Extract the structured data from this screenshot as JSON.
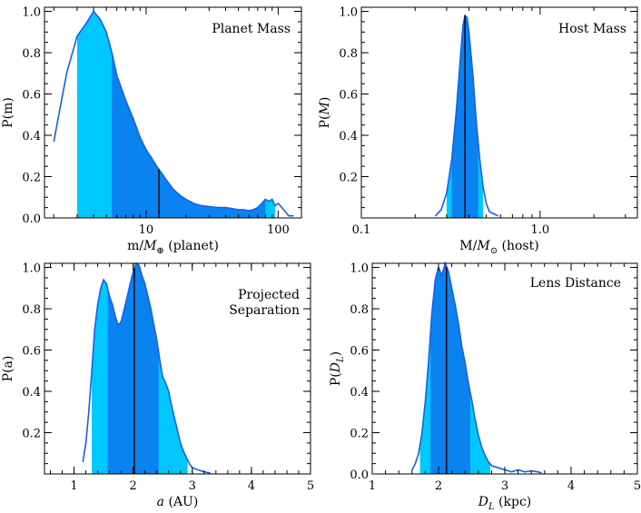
{
  "colors": {
    "light": "#00c8ff",
    "dark": "#0a82f0",
    "line": "#1a5fe6",
    "median": "#000000",
    "axis": "#000000"
  },
  "chart_data": [
    {
      "type": "area",
      "title": "Planet Mass",
      "xscale": "log",
      "xlim": [
        1.7,
        150
      ],
      "ylim": [
        0,
        1.02
      ],
      "xticks": [
        10,
        100
      ],
      "xtick_labels": [
        "10",
        "100"
      ],
      "yticks": [
        0,
        0.2,
        0.4,
        0.6,
        0.8,
        1.0
      ],
      "ytick_labels": [
        "0.0",
        "0.2",
        "0.4",
        "0.6",
        "0.8",
        "1.0"
      ],
      "xlabel_parts": [
        "m/",
        "M",
        "⊕",
        " (planet)"
      ],
      "ylabel": "P(m)",
      "x": [
        2.0,
        2.5,
        3.0,
        3.5,
        4.0,
        4.5,
        5.0,
        5.5,
        6.0,
        7.0,
        8.0,
        9.0,
        10,
        11,
        12,
        13,
        14,
        16,
        18,
        20,
        23,
        26,
        30,
        35,
        40,
        45,
        50,
        55,
        60,
        65,
        70,
        75,
        80,
        85,
        90,
        95,
        100,
        110,
        120,
        130
      ],
      "y": [
        0.37,
        0.7,
        0.88,
        0.94,
        1.0,
        0.96,
        0.9,
        0.8,
        0.69,
        0.57,
        0.48,
        0.39,
        0.33,
        0.29,
        0.25,
        0.22,
        0.19,
        0.14,
        0.11,
        0.09,
        0.07,
        0.06,
        0.055,
        0.05,
        0.05,
        0.045,
        0.04,
        0.04,
        0.035,
        0.04,
        0.05,
        0.07,
        0.09,
        0.08,
        0.09,
        0.06,
        0.07,
        0.04,
        0.01,
        0.01
      ],
      "bands": {
        "light": [
          3.0,
          95
        ],
        "dark": [
          5.5,
          80
        ]
      },
      "median": 12.5
    },
    {
      "type": "area",
      "title": "Host Mass",
      "xscale": "log",
      "xlim": [
        0.1,
        3.5
      ],
      "ylim": [
        0,
        1.02
      ],
      "xticks": [
        0.1,
        1.0
      ],
      "xtick_labels": [
        "0.1",
        "1.0"
      ],
      "yticks": [
        0.2,
        0.4,
        0.6,
        0.8,
        1.0
      ],
      "ytick_labels": [
        "0.2",
        "0.4",
        "0.6",
        "0.8",
        "1.0"
      ],
      "xlabel_parts": [
        "M/",
        "M",
        "⊙",
        " (host)"
      ],
      "ylabel": "P(M)",
      "x": [
        0.26,
        0.28,
        0.3,
        0.32,
        0.34,
        0.36,
        0.37,
        0.38,
        0.39,
        0.4,
        0.42,
        0.44,
        0.46,
        0.48,
        0.5,
        0.52,
        0.55,
        0.58
      ],
      "y": [
        0.01,
        0.04,
        0.12,
        0.28,
        0.52,
        0.8,
        0.93,
        0.98,
        0.97,
        0.9,
        0.7,
        0.46,
        0.28,
        0.15,
        0.07,
        0.03,
        0.02,
        0.01
      ],
      "bands": {
        "light": [
          0.3,
          0.48
        ],
        "dark": [
          0.32,
          0.45
        ]
      },
      "median": 0.38
    },
    {
      "type": "area",
      "title": "Projected Separation",
      "xscale": "linear",
      "xlim": [
        0.5,
        5.0
      ],
      "ylim": [
        0,
        1.02
      ],
      "xticks": [
        1,
        2,
        3,
        4,
        5
      ],
      "xtick_labels": [
        "1",
        "2",
        "3",
        "4",
        "5"
      ],
      "yticks": [
        0.2,
        0.4,
        0.6,
        0.8,
        1.0
      ],
      "ytick_labels": [
        "0.2",
        "0.4",
        "0.6",
        "0.8",
        "1.0"
      ],
      "xlabel_parts": [
        "a",
        " (AU)"
      ],
      "ylabel": "P(a)",
      "x": [
        1.15,
        1.2,
        1.25,
        1.3,
        1.35,
        1.4,
        1.45,
        1.5,
        1.55,
        1.6,
        1.65,
        1.7,
        1.75,
        1.8,
        1.85,
        1.9,
        1.95,
        2.0,
        2.05,
        2.1,
        2.15,
        2.2,
        2.25,
        2.3,
        2.35,
        2.4,
        2.45,
        2.5,
        2.55,
        2.6,
        2.65,
        2.7,
        2.75,
        2.8,
        2.85,
        2.9,
        2.95,
        3.0,
        3.1,
        3.2,
        3.3
      ],
      "y": [
        0.06,
        0.15,
        0.3,
        0.5,
        0.7,
        0.82,
        0.9,
        0.94,
        0.92,
        0.86,
        0.82,
        0.76,
        0.72,
        0.74,
        0.8,
        0.86,
        0.92,
        0.98,
        1.02,
        1.01,
        0.96,
        0.92,
        0.86,
        0.8,
        0.72,
        0.65,
        0.55,
        0.47,
        0.44,
        0.4,
        0.33,
        0.27,
        0.21,
        0.15,
        0.11,
        0.08,
        0.05,
        0.03,
        0.02,
        0.01,
        0.005
      ],
      "bands": {
        "light": [
          1.3,
          2.92
        ],
        "dark": [
          1.57,
          2.43
        ]
      },
      "median": 2.02
    },
    {
      "type": "area",
      "title": "Lens Distance",
      "xscale": "linear",
      "xlim": [
        1.0,
        5.0
      ],
      "ylim": [
        0,
        1.02
      ],
      "xticks": [
        1,
        2,
        3,
        4,
        5
      ],
      "xtick_labels": [
        "1",
        "2",
        "3",
        "4",
        "5"
      ],
      "yticks": [
        0,
        0.2,
        0.4,
        0.6,
        0.8,
        1.0
      ],
      "ytick_labels": [
        "0.0",
        "0.2",
        "0.4",
        "0.6",
        "0.8",
        "1.0"
      ],
      "xlabel_parts": [
        "D",
        "L",
        " (kpc)"
      ],
      "ylabel": "P(D_L)",
      "x": [
        1.6,
        1.65,
        1.7,
        1.75,
        1.8,
        1.85,
        1.9,
        1.95,
        2.0,
        2.05,
        2.1,
        2.15,
        2.2,
        2.25,
        2.3,
        2.35,
        2.4,
        2.45,
        2.5,
        2.55,
        2.6,
        2.65,
        2.7,
        2.75,
        2.8,
        2.9,
        3.0,
        3.1,
        3.2,
        3.3,
        3.4,
        3.5,
        3.55
      ],
      "y": [
        0.02,
        0.05,
        0.1,
        0.2,
        0.35,
        0.55,
        0.78,
        0.94,
        1.0,
        0.96,
        1.02,
        0.98,
        0.9,
        0.82,
        0.73,
        0.62,
        0.54,
        0.44,
        0.36,
        0.27,
        0.19,
        0.13,
        0.09,
        0.06,
        0.04,
        0.03,
        0.02,
        0.01,
        0.02,
        0.01,
        0.015,
        0.01,
        0.005
      ],
      "bands": {
        "light": [
          1.72,
          2.78
        ],
        "dark": [
          1.88,
          2.48
        ]
      },
      "median": 2.12
    }
  ]
}
